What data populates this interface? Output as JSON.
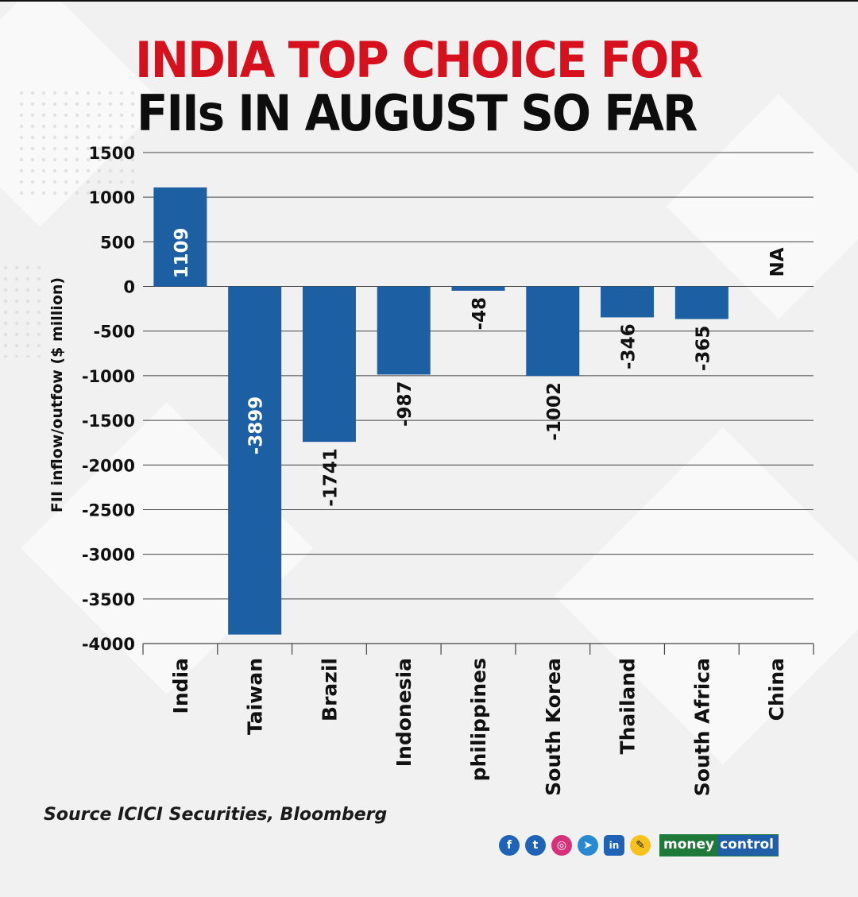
{
  "title": {
    "line1": "INDIA TOP CHOICE FOR",
    "line2": "FIIs IN AUGUST SO FAR",
    "line1_color": "#d7101d",
    "line2_color": "#0d0d0d"
  },
  "chart_data": {
    "type": "bar",
    "title": "INDIA TOP CHOICE FOR FIIs IN AUGUST SO FAR",
    "xlabel": "",
    "ylabel": "FII inflow/outfow ($ million)",
    "ylim": [
      -4000,
      1500
    ],
    "yticks": [
      1500,
      1000,
      500,
      0,
      -500,
      -1000,
      -1500,
      -2000,
      -2500,
      -3000,
      -3500,
      -4000
    ],
    "grid": true,
    "bar_color": "#1d5fa3",
    "categories": [
      "India",
      "Taiwan",
      "Brazil",
      "Indonesia",
      "philippines",
      "South Korea",
      "Thailand",
      "South Africa",
      "China"
    ],
    "values": [
      1109,
      -3899,
      -1741,
      -987,
      -48,
      -1002,
      -346,
      -365,
      null
    ],
    "data_labels": [
      "1109",
      "-3899",
      "-1741",
      "-987",
      "-48",
      "-1002",
      "-346",
      "-365",
      "NA"
    ]
  },
  "footer": {
    "source": "Source ICICI Securities, Bloomberg",
    "social_icons": [
      "facebook-icon",
      "twitter-icon",
      "instagram-icon",
      "telegram-icon",
      "linkedin-icon",
      "koo-icon"
    ],
    "social_glyphs": {
      "fb": "f",
      "tw": "t",
      "ig": "◎",
      "tg": "➤",
      "li": "in",
      "koo": "✎"
    },
    "brand_part1": "money",
    "brand_part2": "control"
  }
}
